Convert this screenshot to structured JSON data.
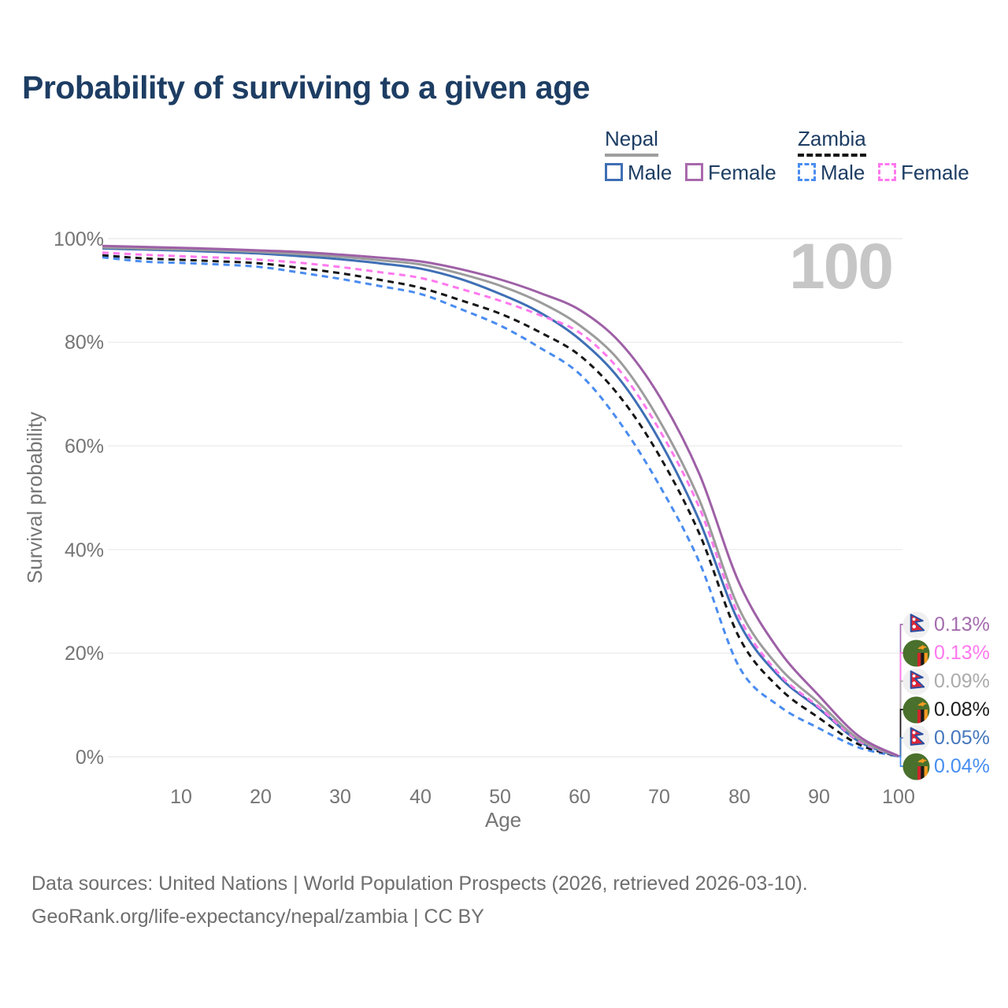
{
  "title": "Probability of surviving to a given age",
  "watermark": "100",
  "legend": {
    "nepal": {
      "label": "Nepal",
      "underline_style": "solid",
      "underline_color": "#9e9e9e",
      "male": {
        "label": "Male",
        "color": "#3f6fb5",
        "dashed": false
      },
      "female": {
        "label": "Female",
        "color": "#a869ac",
        "dashed": false
      }
    },
    "zambia": {
      "label": "Zambia",
      "underline_style": "dashed",
      "underline_color": "#161616",
      "male": {
        "label": "Male",
        "color": "#4a8cf0",
        "dashed": true
      },
      "female": {
        "label": "Female",
        "color": "#ff78ee",
        "dashed": true
      }
    }
  },
  "chart_data": {
    "type": "line",
    "title": "Probability of surviving to a given age",
    "xlabel": "Age",
    "ylabel": "Survival probability",
    "ylim": [
      0,
      100
    ],
    "xlim": [
      0,
      100
    ],
    "grid": true,
    "x_ticks": [
      10,
      20,
      30,
      40,
      50,
      60,
      70,
      80,
      90,
      100
    ],
    "x_tick_labels": [
      "10",
      "20",
      "30",
      "40",
      "50",
      "60",
      "70",
      "80",
      "90",
      "100"
    ],
    "y_tick_values": [
      100,
      80,
      60,
      40,
      20,
      0
    ],
    "y_tick_labels": [
      "100%",
      "80%",
      "60%",
      "40%",
      "20%",
      "0%"
    ],
    "x": [
      0,
      5,
      10,
      15,
      20,
      25,
      30,
      35,
      40,
      45,
      50,
      55,
      60,
      65,
      70,
      75,
      80,
      85,
      90,
      95,
      100
    ],
    "series": [
      {
        "name": "Nepal Male",
        "country": "Nepal",
        "sex": "Male",
        "color": "#3f6fb5",
        "dashed": false,
        "values": [
          98.1,
          97.9,
          97.7,
          97.4,
          97.1,
          96.6,
          96.0,
          95.2,
          94.2,
          92.2,
          89.3,
          85.7,
          80.5,
          72.8,
          61.0,
          45.5,
          25.8,
          15.5,
          9.3,
          3.0,
          0.05
        ]
      },
      {
        "name": "Nepal Female",
        "country": "Nepal",
        "sex": "Female",
        "color": "#9e60a6",
        "dashed": false,
        "values": [
          98.6,
          98.4,
          98.2,
          98.0,
          97.7,
          97.4,
          96.9,
          96.3,
          95.6,
          94.1,
          92.1,
          89.5,
          86.2,
          80.0,
          69.5,
          54.5,
          33.5,
          20.5,
          11.8,
          4.0,
          0.13
        ]
      },
      {
        "name": "Nepal (both sexes)",
        "country": "Nepal",
        "sex": "Both",
        "color": "#9c9c9c",
        "dashed": false,
        "values": [
          98.3,
          98.1,
          97.9,
          97.7,
          97.4,
          97.0,
          96.5,
          95.8,
          95.0,
          93.2,
          90.9,
          87.7,
          83.2,
          76.3,
          64.8,
          49.5,
          28.5,
          17.3,
          10.4,
          3.4,
          0.09
        ]
      },
      {
        "name": "Zambia Male",
        "country": "Zambia",
        "sex": "Male",
        "color": "#4a8cf0",
        "dashed": true,
        "values": [
          96.4,
          95.6,
          95.3,
          95.0,
          94.5,
          93.4,
          92.2,
          90.8,
          89.3,
          86.4,
          83.2,
          78.9,
          73.8,
          64.5,
          52.3,
          37.5,
          17.3,
          9.8,
          5.5,
          1.8,
          0.04
        ]
      },
      {
        "name": "Zambia Female",
        "country": "Zambia",
        "sex": "Female",
        "color": "#ff78ee",
        "dashed": true,
        "values": [
          97.3,
          96.9,
          96.6,
          96.3,
          95.9,
          95.3,
          94.5,
          93.5,
          92.4,
          90.3,
          88.0,
          85.2,
          81.8,
          74.5,
          63.0,
          48.0,
          27.0,
          16.0,
          9.6,
          3.1,
          0.13
        ]
      },
      {
        "name": "Zambia (both sexes)",
        "country": "Zambia",
        "sex": "Both",
        "color": "#161616",
        "dashed": true,
        "values": [
          96.8,
          96.2,
          95.9,
          95.6,
          95.2,
          94.3,
          93.3,
          92.0,
          90.5,
          88.1,
          85.5,
          81.9,
          77.4,
          69.5,
          58.0,
          43.0,
          23.0,
          13.3,
          7.5,
          2.4,
          0.08
        ]
      }
    ]
  },
  "end_labels": [
    {
      "flag": "nepal",
      "series_name": "Nepal Female",
      "series_index": 1,
      "value": "0.13%",
      "color": "#a46cae"
    },
    {
      "flag": "zambia",
      "series_name": "Zambia Female",
      "series_index": 4,
      "value": "0.13%",
      "color": "#ff78ee"
    },
    {
      "flag": "nepal",
      "series_name": "Nepal (both sexes)",
      "series_index": 2,
      "value": "0.09%",
      "color": "#ababab"
    },
    {
      "flag": "zambia",
      "series_name": "Zambia (both sexes)",
      "series_index": 5,
      "value": "0.08%",
      "color": "#1a1a1a"
    },
    {
      "flag": "nepal",
      "series_name": "Nepal Male",
      "series_index": 0,
      "value": "0.05%",
      "color": "#4577bd"
    },
    {
      "flag": "zambia",
      "series_name": "Zambia Male",
      "series_index": 3,
      "value": "0.04%",
      "color": "#468ef2"
    }
  ],
  "footer": {
    "line1": "Data sources: United Nations | World Population Prospects (2026, retrieved 2026-03-10).",
    "line2": "GeoRank.org/life-expectancy/nepal/zambia | CC BY"
  }
}
